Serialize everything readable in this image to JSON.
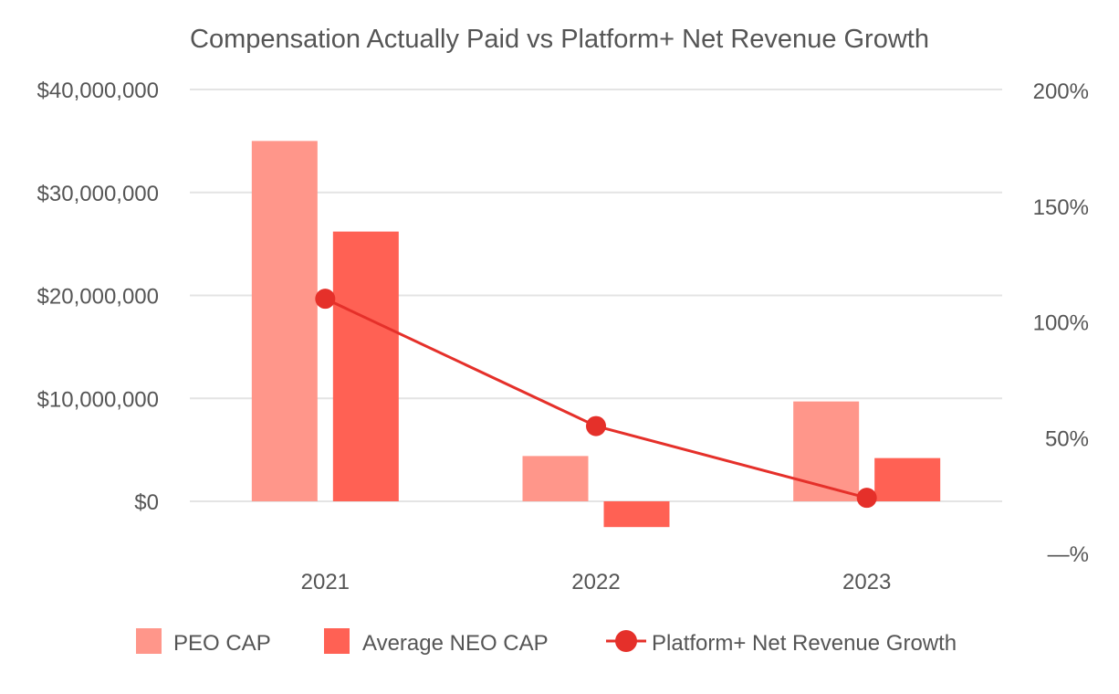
{
  "chart_data": {
    "type": "bar",
    "title": "Compensation Actually Paid vs Platform+ Net Revenue Growth",
    "categories": [
      "2021",
      "2022",
      "2023"
    ],
    "series": [
      {
        "name": "PEO CAP",
        "type": "bar",
        "axis": "left",
        "color": "#ff968a",
        "values": [
          35000000,
          4400000,
          9700000
        ]
      },
      {
        "name": "Average NEO CAP",
        "type": "bar",
        "axis": "left",
        "color": "#ff6154",
        "values": [
          26200000,
          -2500000,
          4200000
        ]
      },
      {
        "name": "Platform+ Net Revenue Growth",
        "type": "line",
        "axis": "right",
        "color": "#e5302a",
        "values": [
          110,
          55,
          24
        ]
      }
    ],
    "y_left": {
      "ylim": [
        -5000000,
        40000000
      ],
      "ticks": [
        0,
        10000000,
        20000000,
        30000000,
        40000000
      ],
      "tick_labels": [
        "$0",
        "$10,000,000",
        "$20,000,000",
        "$30,000,000",
        "$40,000,000"
      ]
    },
    "y_right": {
      "ylim": [
        0,
        200
      ],
      "ticks": [
        0,
        50,
        100,
        150,
        200
      ],
      "tick_labels": [
        "—%",
        "50%",
        "100%",
        "150%",
        "200%"
      ]
    },
    "legend_position": "bottom",
    "grid": true
  }
}
